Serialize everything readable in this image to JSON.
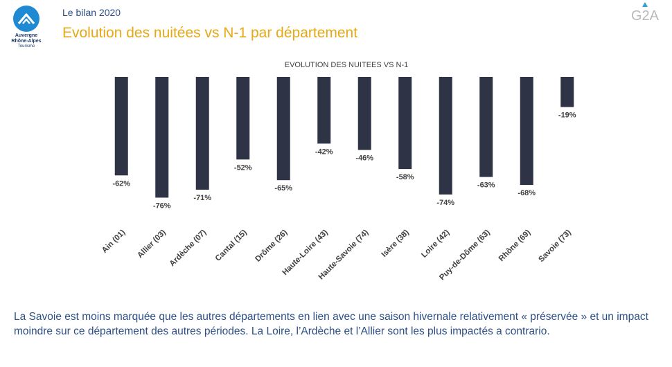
{
  "header": {
    "eyebrow": "Le bilan 2020",
    "title": "Evolution des nuitées vs N-1 par département",
    "brand_right": "G2A"
  },
  "logo": {
    "line1": "Auvergne",
    "line2": "Rhône-Alpes",
    "line3": "Tourisme"
  },
  "chart_data": {
    "type": "bar",
    "title": "EVOLUTION DES NUITEES VS N-1",
    "categories": [
      "Ain (01)",
      "Allier (03)",
      "Ardèche (07)",
      "Cantal (15)",
      "Drôme (26)",
      "Haute-Loire (43)",
      "Haute-Savoie (74)",
      "Isère (38)",
      "Loire (42)",
      "Puy-de-Dôme (63)",
      "Rhône (69)",
      "Savoie (73)"
    ],
    "values": [
      -62,
      -76,
      -71,
      -52,
      -65,
      -42,
      -46,
      -58,
      -74,
      -63,
      -68,
      -19
    ],
    "value_labels": [
      "-62%",
      "-76%",
      "-71%",
      "-52%",
      "-65%",
      "-42%",
      "-46%",
      "-58%",
      "-74%",
      "-63%",
      "-68%",
      "-19%"
    ],
    "unit": "%",
    "ylim": [
      -80,
      0
    ],
    "bar_color": "#2e3446",
    "grid": false,
    "legend": false
  },
  "commentary": "La Savoie est moins marquée que les autres départements en lien avec une saison hivernale relativement « préservée » et un impact moindre sur ce département des autres périodes. La Loire, l’Ardèche et l’Allier sont les plus impactés a contrario.",
  "colors": {
    "title": "#e6a817",
    "text": "#2b4f86",
    "logo": "#1f8ad2"
  }
}
